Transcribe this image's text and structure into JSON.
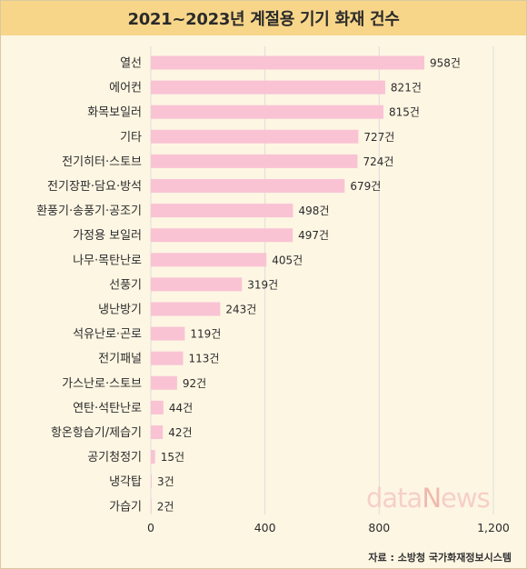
{
  "title": "2021~2023년 계절용 기기 화재 건수",
  "source": "자료 : 소방청 국가화재정보시스템",
  "watermark": {
    "prefix": "data",
    "accent": "N",
    "suffix": "ews"
  },
  "colors": {
    "bar": "#f9c3d4",
    "title_bg": "#f7d68a",
    "background": "#fdf6e3",
    "grid": "#dddddd"
  },
  "chart_data": {
    "type": "bar",
    "orientation": "horizontal",
    "title": "2021~2023년 계절용 기기 화재 건수",
    "categories": [
      "열선",
      "에어컨",
      "화목보일러",
      "기타",
      "전기히터·스토브",
      "전기장판·담요·방석",
      "환풍기·송풍기·공조기",
      "가정용 보일러",
      "나무·목탄난로",
      "선풍기",
      "냉난방기",
      "석유난로·곤로",
      "전기패널",
      "가스난로·스토브",
      "연탄·석탄난로",
      "항온항습기/제습기",
      "공기청정기",
      "냉각탑",
      "가습기"
    ],
    "values": [
      958,
      821,
      815,
      727,
      724,
      679,
      498,
      497,
      405,
      319,
      243,
      119,
      113,
      92,
      44,
      42,
      15,
      3,
      2
    ],
    "value_labels": [
      "958건",
      "821건",
      "815건",
      "727건",
      "724건",
      "679건",
      "498건",
      "497건",
      "405건",
      "319건",
      "243건",
      "119건",
      "113건",
      "92건",
      "44건",
      "42건",
      "15건",
      "3건",
      "2건"
    ],
    "xlim": [
      0,
      1200
    ],
    "xticks": [
      0,
      400,
      800,
      1200
    ],
    "xtick_labels": [
      "0",
      "400",
      "800",
      "1,200"
    ],
    "grid": true
  }
}
